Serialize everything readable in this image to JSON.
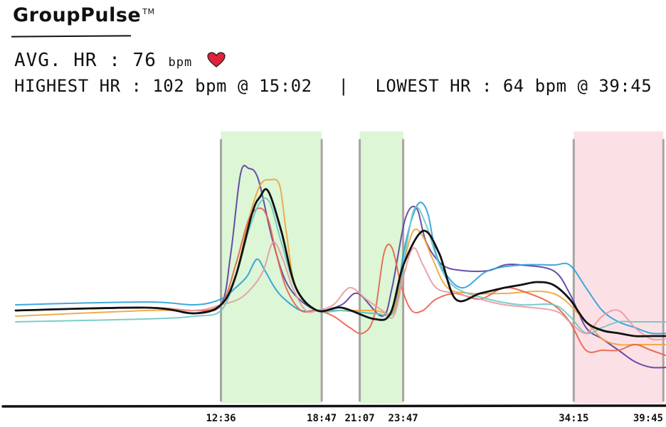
{
  "header": {
    "brand": "GroupPulse",
    "brand_mark": "TM",
    "avg_label": "AVG. HR :",
    "avg_value": "76",
    "avg_unit": "bpm",
    "heart_icon": "heart-icon",
    "highest_label": "HIGHEST HR :",
    "highest_value": "102 bpm @ 15:02",
    "divider": "|",
    "lowest_label": "LOWEST HR :",
    "lowest_value": "64 bpm @ 39:45"
  },
  "colors": {
    "accent_heart": "#e0223a",
    "high_band": "#dcf6d6",
    "low_band": "#fbe1e6",
    "marker": "#a8a4a0",
    "average": "#111111",
    "axis": "#111111"
  },
  "chart_data": {
    "type": "line",
    "title": "",
    "xlabel": "",
    "ylabel": "",
    "x_unit": "elapsed time (mm:ss)",
    "y_unit": "bpm",
    "xlim": [
      "00:00",
      "40:00"
    ],
    "ylim": [
      60,
      105
    ],
    "grid": false,
    "legend": "none",
    "x_tick_labels": [
      "12:36",
      "18:47",
      "21:07",
      "23:47",
      "34:15",
      "39:45"
    ],
    "bands": [
      {
        "kind": "high",
        "from": "12:36",
        "to": "18:47"
      },
      {
        "kind": "high",
        "from": "21:07",
        "to": "23:47"
      },
      {
        "kind": "low",
        "from": "34:15",
        "to": "39:45"
      }
    ],
    "average_series": {
      "name": "",
      "color": "#111111",
      "x": [
        0,
        8,
        11,
        12.6,
        13.5,
        14.5,
        15,
        15.5,
        16.3,
        17.2,
        18.5,
        20,
        22,
        23,
        23.8,
        25,
        26,
        27,
        28.5,
        30,
        31,
        32,
        33,
        34,
        35,
        36,
        37,
        38,
        39,
        40
      ],
      "y": [
        76,
        76.5,
        75.5,
        77,
        82,
        93,
        96,
        97,
        90,
        80,
        76,
        76.5,
        74.5,
        75.5,
        84,
        90,
        86,
        78,
        79,
        80,
        80.5,
        81,
        80.5,
        78,
        74,
        72.5,
        72,
        71.5,
        71.5,
        71.5
      ]
    },
    "series": [
      {
        "name": "",
        "color": "#5b3a9e",
        "x": [
          0,
          8,
          11,
          12.6,
          13.2,
          13.8,
          14.3,
          14.9,
          15.8,
          16.8,
          18.5,
          20,
          21,
          22.5,
          23.1,
          23.9,
          24.6,
          25.2,
          26.2,
          27.5,
          29,
          30,
          31,
          33,
          34,
          35,
          36,
          37,
          38,
          39,
          40
        ],
        "y": [
          76,
          76.5,
          76,
          77,
          86,
          100,
          101,
          99,
          88,
          80,
          76,
          77,
          79,
          75,
          80,
          92,
          94,
          88,
          84,
          83,
          83,
          84,
          84,
          83,
          79,
          73,
          71,
          69,
          67,
          66,
          66
        ]
      },
      {
        "name": "",
        "color": "#2a9fd8",
        "x": [
          0,
          8,
          11,
          12.6,
          13.5,
          14.2,
          14.8,
          15.3,
          15.9,
          16.5,
          17.5,
          18.5,
          20,
          22,
          23.2,
          23.8,
          24.3,
          24.8,
          25.3,
          25.8,
          26.5,
          27.5,
          29,
          31,
          33,
          34,
          35,
          36,
          37,
          38,
          39,
          40
        ],
        "y": [
          77,
          77.5,
          77,
          78,
          80,
          82,
          85,
          83,
          80,
          78,
          76,
          76,
          76,
          75.5,
          76,
          86,
          92,
          95,
          93,
          86,
          82,
          80,
          83,
          84,
          84,
          84,
          80,
          76,
          74,
          73,
          72,
          72
        ]
      },
      {
        "name": "",
        "color": "#f0a436",
        "x": [
          0,
          8,
          11,
          12.6,
          13.5,
          14.3,
          15,
          15.6,
          16.2,
          16.6,
          17.2,
          18.5,
          20,
          22,
          23.2,
          23.8,
          24.4,
          25,
          25.6,
          26.5,
          28,
          30,
          33,
          35,
          36,
          37,
          38,
          39,
          40
        ],
        "y": [
          75,
          76,
          76,
          77,
          82,
          92,
          98,
          99,
          98,
          90,
          80,
          76,
          76,
          76,
          76,
          84,
          90,
          89,
          85,
          80,
          79,
          79,
          79,
          74,
          71,
          70,
          70,
          70,
          70
        ]
      },
      {
        "name": "",
        "color": "#e8624a",
        "x": [
          0,
          8,
          11,
          12.6,
          13.5,
          14.3,
          15,
          15.5,
          16,
          16.6,
          17.5,
          18.5,
          19.5,
          20.5,
          21.3,
          22,
          22.6,
          23.1,
          23.7,
          24.3,
          25,
          25.8,
          27,
          28.5,
          30,
          31.5,
          33,
          34,
          35,
          36,
          37,
          38,
          39,
          40
        ],
        "y": [
          76,
          76.5,
          76,
          77,
          84,
          92,
          94,
          92,
          86,
          80,
          76,
          76,
          75,
          73,
          72,
          75,
          86,
          87,
          80,
          76,
          76,
          78,
          79,
          78,
          80,
          79,
          77,
          74,
          69,
          69,
          69,
          70,
          69,
          68
        ]
      },
      {
        "name": "",
        "color": "#6cc8c4",
        "x": [
          0,
          8,
          11,
          12.6,
          13.5,
          14.3,
          15,
          15.6,
          16.3,
          17.2,
          18.5,
          20,
          22,
          23.3,
          23.9,
          24.5,
          25.2,
          26,
          27,
          29,
          31,
          33,
          34,
          35,
          36,
          37,
          38,
          39,
          40
        ],
        "y": [
          74,
          74.5,
          75,
          76,
          82,
          90,
          95,
          95,
          88,
          80,
          76,
          76,
          75.5,
          76,
          86,
          94,
          91,
          84,
          80,
          78,
          77,
          77,
          75,
          72,
          73,
          74,
          74,
          74,
          74
        ]
      },
      {
        "name": "",
        "color": "#e79aa2",
        "x": [
          0,
          8,
          11,
          12.6,
          13.7,
          14.5,
          15.2,
          15.8,
          16.4,
          17,
          17.8,
          18.5,
          19.5,
          20.5,
          21.5,
          22.5,
          23.2,
          23.8,
          24.4,
          25,
          25.8,
          27,
          28.5,
          30,
          33,
          34,
          35,
          36,
          37,
          38,
          39,
          40
        ],
        "y": [
          76,
          76.5,
          76,
          77,
          78,
          80,
          83,
          88,
          85,
          80,
          76,
          76,
          77,
          80,
          78,
          76,
          75,
          82,
          87,
          84,
          80,
          79,
          78,
          77,
          76,
          74,
          72,
          75,
          76,
          73,
          71,
          71
        ]
      }
    ]
  }
}
